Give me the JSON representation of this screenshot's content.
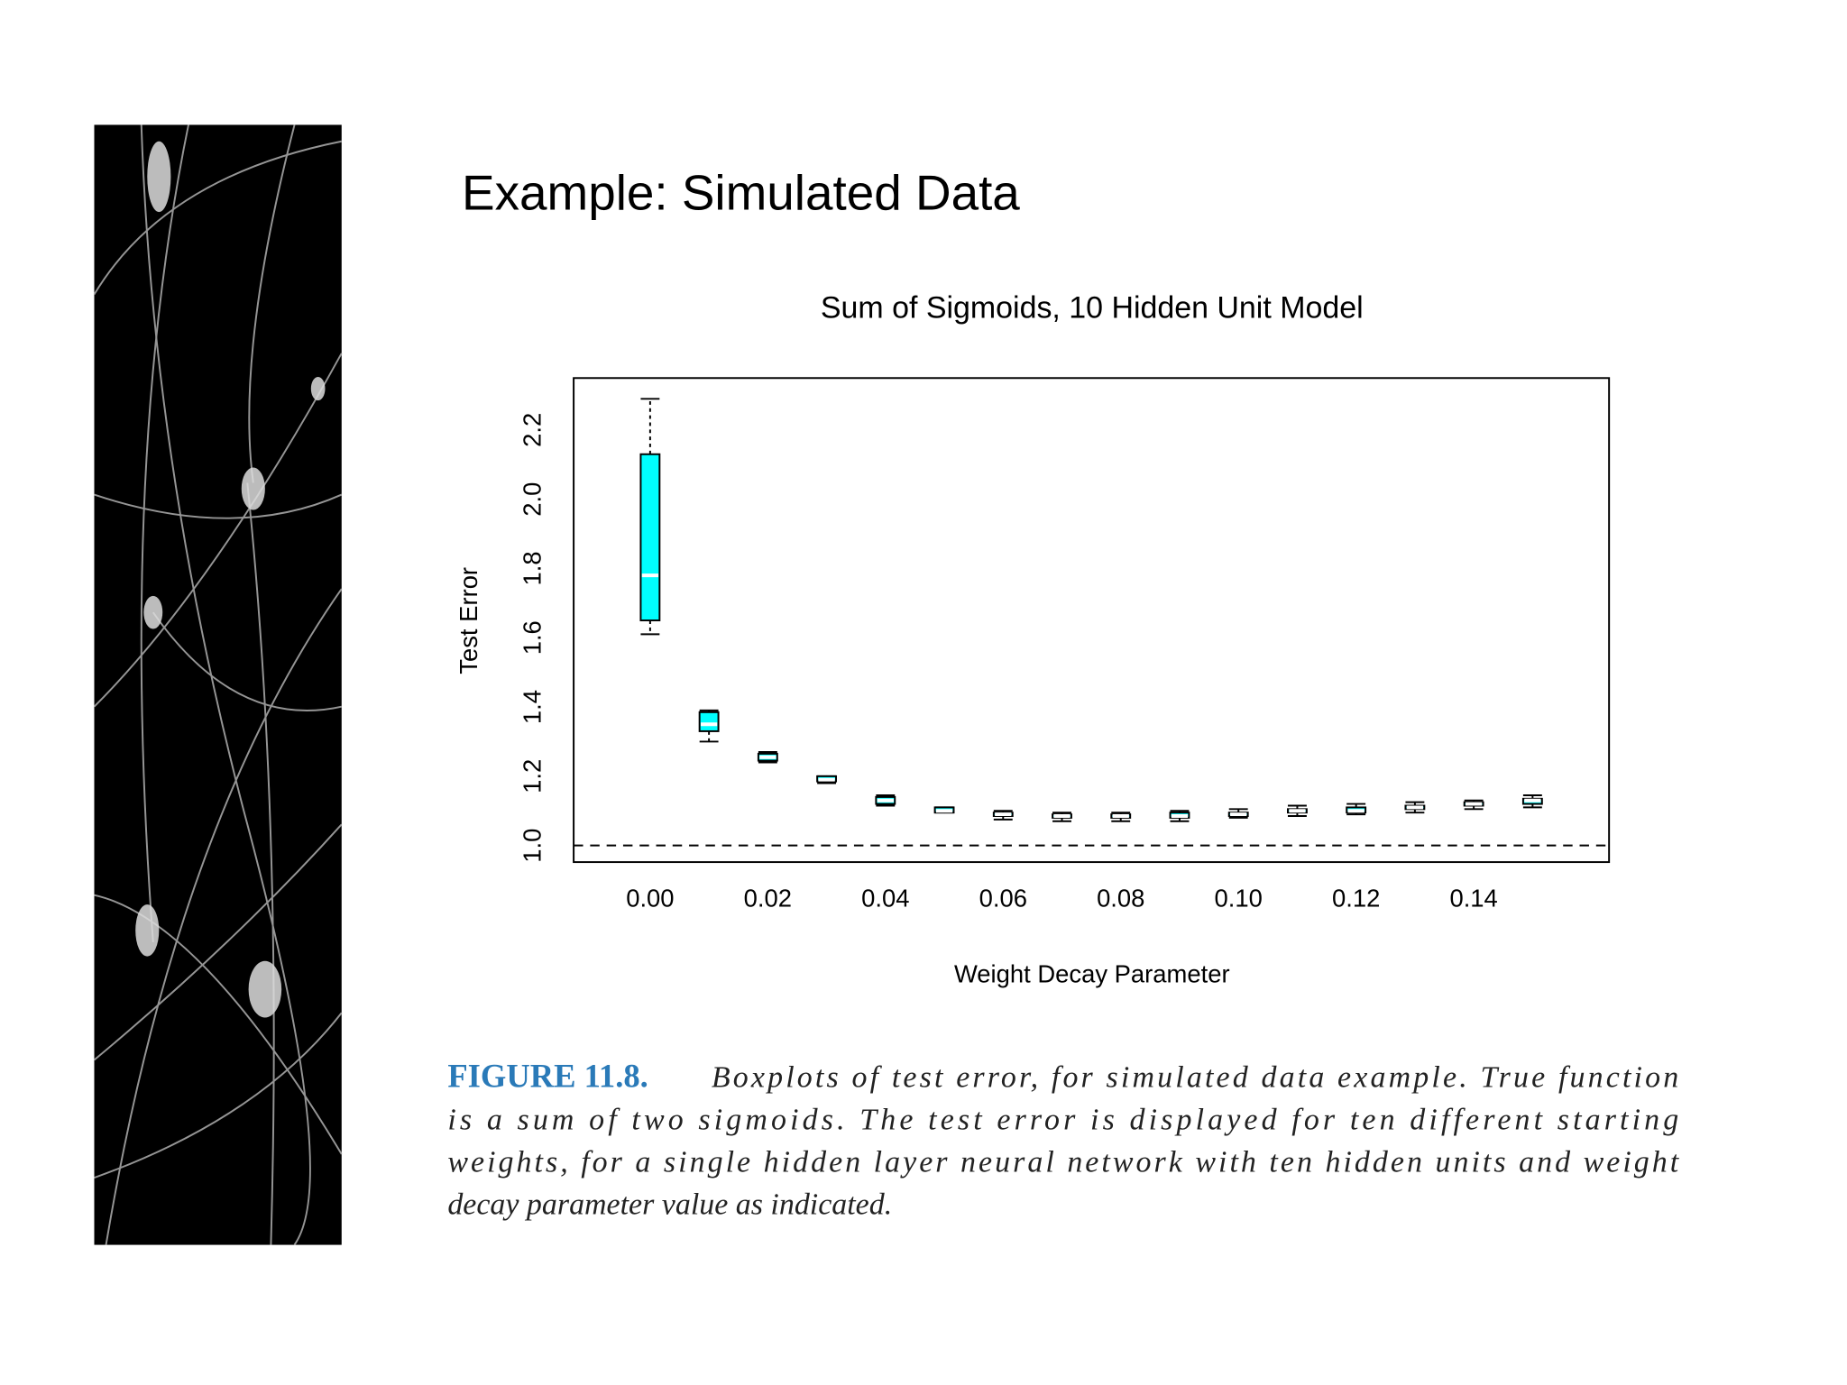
{
  "slide_title": "Example: Simulated Data",
  "chart_data": {
    "type": "boxplot",
    "title": "Sum of Sigmoids, 10 Hidden Unit Model",
    "x_label": "Weight Decay Parameter",
    "y_label": "Test Error",
    "color": "#00ffff",
    "reference_line": 1.0,
    "xlim": [
      -0.013,
      0.163
    ],
    "ylim": [
      0.952,
      2.35
    ],
    "xticks": [
      {
        "value": 0,
        "label": "0.00"
      },
      0.02,
      0.04,
      0.06,
      0.08,
      {
        "value": 0.1,
        "label": "0.10"
      },
      0.12,
      0.14
    ],
    "yticks": [
      {
        "value": 1,
        "label": "1.0"
      },
      1.2,
      1.4,
      1.6,
      1.8,
      {
        "value": 2,
        "label": "2.0"
      },
      2.2
    ],
    "boxes": [
      {
        "x": 0,
        "min": 1.61,
        "q1": 1.65,
        "median": 1.78,
        "q3": 2.13,
        "max": 2.29
      },
      {
        "x": 0.01,
        "min": 1.3,
        "q1": 1.33,
        "median": 1.35,
        "q3": 1.385,
        "max": 1.39
      },
      {
        "x": 0.02,
        "min": 1.24,
        "q1": 1.245,
        "median": 1.255,
        "q3": 1.265,
        "max": 1.27
      },
      {
        "x": 0.03,
        "min": 1.18,
        "q1": 1.185,
        "median": 1.19,
        "q3": 1.2,
        "max": 1.2
      },
      {
        "x": 0.04,
        "min": 1.115,
        "q1": 1.12,
        "median": 1.13,
        "q3": 1.14,
        "max": 1.145
      },
      {
        "x": 0.05,
        "min": 1.095,
        "q1": 1.095,
        "median": 1.1,
        "q3": 1.11,
        "max": 1.11
      },
      {
        "x": 0.06,
        "min": 1.075,
        "q1": 1.085,
        "median": 1.09,
        "q3": 1.095,
        "max": 1.1
      },
      {
        "x": 0.07,
        "min": 1.07,
        "q1": 1.08,
        "median": 1.085,
        "q3": 1.09,
        "max": 1.095
      },
      {
        "x": 0.08,
        "min": 1.07,
        "q1": 1.08,
        "median": 1.085,
        "q3": 1.09,
        "max": 1.095
      },
      {
        "x": 0.09,
        "min": 1.07,
        "q1": 1.08,
        "median": 1.085,
        "q3": 1.095,
        "max": 1.1
      },
      {
        "x": 0.1,
        "min": 1.08,
        "q1": 1.085,
        "median": 1.09,
        "q3": 1.095,
        "max": 1.105
      },
      {
        "x": 0.11,
        "min": 1.085,
        "q1": 1.095,
        "median": 1.1,
        "q3": 1.105,
        "max": 1.115
      },
      {
        "x": 0.12,
        "min": 1.09,
        "q1": 1.095,
        "median": 1.1,
        "q3": 1.11,
        "max": 1.12
      },
      {
        "x": 0.13,
        "min": 1.095,
        "q1": 1.105,
        "median": 1.11,
        "q3": 1.115,
        "max": 1.125
      },
      {
        "x": 0.14,
        "min": 1.105,
        "q1": 1.115,
        "median": 1.12,
        "q3": 1.125,
        "max": 1.13
      },
      {
        "x": 0.15,
        "min": 1.11,
        "q1": 1.12,
        "median": 1.13,
        "q3": 1.135,
        "max": 1.145
      }
    ]
  },
  "caption_label": "FIGURE 11.8.",
  "caption_lines": [
    "Boxplots of test error, for simulated data example. True function",
    "is a sum of two sigmoids. The test error is displayed for ten different starting",
    "weights, for a single hidden layer neural network with ten hidden units and weight",
    "decay parameter value as indicated."
  ]
}
